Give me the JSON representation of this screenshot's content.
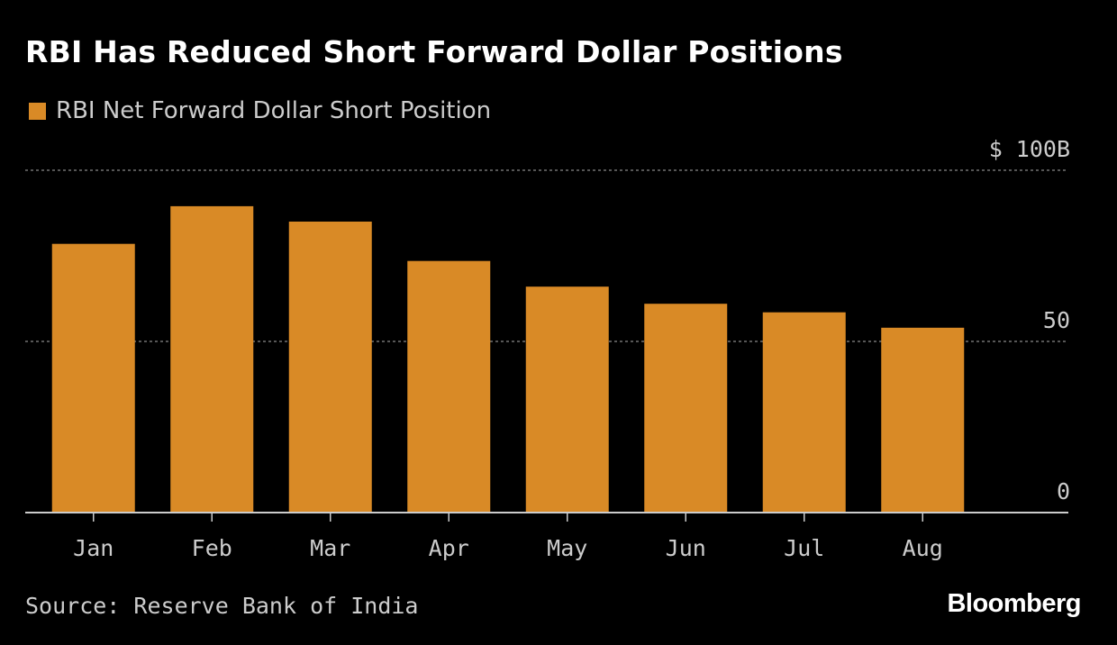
{
  "colors": {
    "background": "#000000",
    "bar": "#D98A26",
    "text_primary": "#ffffff",
    "text_secondary": "#cccccc",
    "grid": "#8a8a8a",
    "axis": "#cccccc"
  },
  "brand": "Bloomberg",
  "source": "Source: Reserve Bank of India",
  "chart_data": {
    "type": "bar",
    "title": "RBI Has Reduced Short Forward Dollar Positions",
    "legend": [
      "RBI Net Forward Dollar Short Position"
    ],
    "legend_position": "top-left",
    "categories": [
      "Jan",
      "Feb",
      "Mar",
      "Apr",
      "May",
      "Jun",
      "Jul",
      "Aug"
    ],
    "series": [
      {
        "name": "RBI Net Forward Dollar Short Position",
        "values": [
          78.5,
          89.5,
          85.0,
          73.5,
          66.0,
          61.0,
          58.5,
          54.0
        ]
      }
    ],
    "ylim": [
      0,
      100
    ],
    "yticks": [
      0,
      50,
      100
    ],
    "ytick_labels": [
      "0",
      "50",
      "$ 100B"
    ],
    "xlabel": "",
    "ylabel": "",
    "grid": true
  }
}
